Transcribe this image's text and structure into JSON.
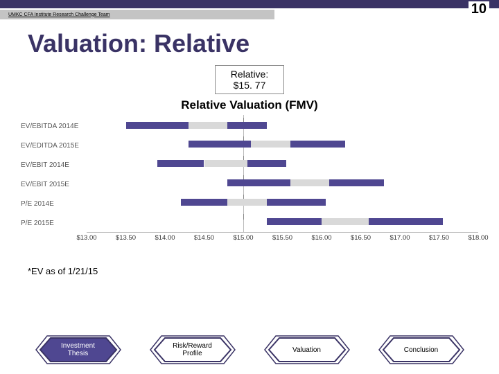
{
  "slide_number": "10",
  "header_tag": "UMKC CFA Institute Research Challenge Team",
  "title": "Valuation: Relative",
  "valuation_box_line1": "Relative:",
  "valuation_box_line2": "$15. 77",
  "chart": {
    "title": "Relative Valuation (FMV)",
    "x_min": 13.0,
    "x_max": 18.0,
    "x_labels": [
      "$13.00",
      "$13.50",
      "$14.00",
      "$14.50",
      "$15.00",
      "$15.50",
      "$16.00",
      "$16.50",
      "$17.00",
      "$17.50",
      "$18.00"
    ],
    "series": [
      {
        "label": "EV/EBITDA 2014E",
        "low": 13.5,
        "mid_low": 14.3,
        "mid_high": 14.8,
        "high": 15.3
      },
      {
        "label": "EV/EDITDA 2015E",
        "low": 14.3,
        "mid_low": 15.1,
        "mid_high": 15.6,
        "high": 16.3
      },
      {
        "label": "EV/EBIT 2014E",
        "low": 13.9,
        "mid_low": 14.5,
        "mid_high": 15.05,
        "high": 15.55
      },
      {
        "label": "EV/EBIT 2015E",
        "low": 14.8,
        "mid_low": 15.6,
        "mid_high": 16.1,
        "high": 16.8
      },
      {
        "label": "P/E 2014E",
        "low": 14.2,
        "mid_low": 14.8,
        "mid_high": 15.3,
        "high": 16.05
      },
      {
        "label": "P/E 2015E",
        "low": 15.3,
        "mid_low": 16.0,
        "mid_high": 16.6,
        "high": 17.55
      }
    ],
    "axis_mark": 15.0,
    "colors": {
      "outer": "#4f4791",
      "inner": "#d9d9d9",
      "axis": "#bbbbbb"
    }
  },
  "footnote": "*EV as of 1/21/15",
  "nav": [
    {
      "label": "Investment\nThesis",
      "fill": "#4f4791",
      "text": "#ffffff"
    },
    {
      "label": "Risk/Reward\nProfile",
      "fill": "#ffffff",
      "text": "#000000"
    },
    {
      "label": "Valuation",
      "fill": "#ffffff",
      "text": "#000000"
    },
    {
      "label": "Conclusion",
      "fill": "#ffffff",
      "text": "#000000"
    }
  ]
}
